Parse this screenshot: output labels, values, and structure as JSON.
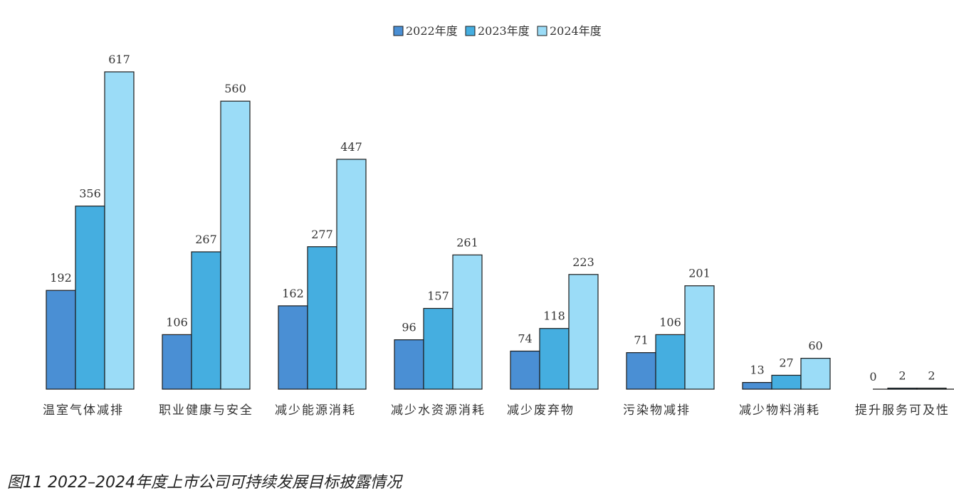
{
  "caption": "图11 2022–2024年度上市公司可持续发展目标披露情况",
  "colors": {
    "s2022": "#4a8fd4",
    "s2023": "#45aee0",
    "s2024": "#9bdcf7",
    "outline": "#1b1b1b"
  },
  "chart_data": {
    "type": "bar",
    "title": "",
    "xlabel": "",
    "ylabel": "",
    "ylim": [
      0,
      617
    ],
    "grid": false,
    "legend": "top-center",
    "categories": [
      "温室气体减排",
      "职业健康与安全",
      "减少能源消耗",
      "减少水资源消耗",
      "减少废弃物",
      "污染物减排",
      "减少物料消耗",
      "提升服务可及性"
    ],
    "series": [
      {
        "name": "2022年度",
        "values": [
          192,
          106,
          162,
          96,
          74,
          71,
          13,
          0
        ]
      },
      {
        "name": "2023年度",
        "values": [
          356,
          267,
          277,
          157,
          118,
          106,
          27,
          2
        ]
      },
      {
        "name": "2024年度",
        "values": [
          617,
          560,
          447,
          261,
          223,
          201,
          60,
          2
        ]
      }
    ]
  }
}
